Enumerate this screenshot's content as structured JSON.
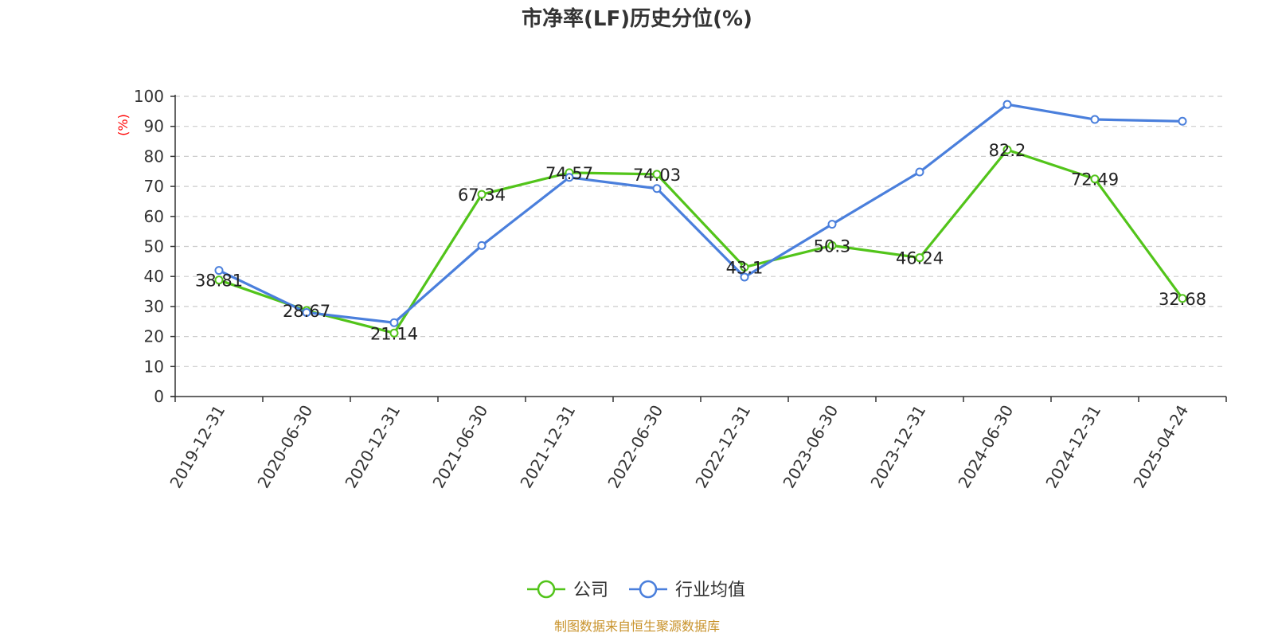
{
  "chart_data": {
    "type": "line",
    "title": "市净率(LF)历史分位(%)",
    "ylabel": "(%)",
    "ylim": [
      0,
      100
    ],
    "yticks": [
      0,
      10,
      20,
      30,
      40,
      50,
      60,
      70,
      80,
      90,
      100
    ],
    "grid": true,
    "legend_position": "bottom",
    "categories": [
      "2019-12-31",
      "2020-06-30",
      "2020-12-31",
      "2021-06-30",
      "2021-12-31",
      "2022-06-30",
      "2022-12-31",
      "2023-06-30",
      "2023-12-31",
      "2024-06-30",
      "2024-12-31",
      "2025-04-24"
    ],
    "series": [
      {
        "name": "公司",
        "color": "#52c41a",
        "show_labels": true,
        "values": [
          38.81,
          28.67,
          21.14,
          67.34,
          74.57,
          74.03,
          43.1,
          50.3,
          46.24,
          82.2,
          72.49,
          32.68
        ]
      },
      {
        "name": "行业均值",
        "color": "#4a7fdc",
        "show_labels": false,
        "values": [
          42.0,
          28.0,
          24.6,
          50.3,
          73.0,
          69.3,
          39.8,
          57.4,
          74.8,
          97.3,
          92.3,
          91.7
        ]
      }
    ],
    "source": "制图数据来自恒生聚源数据库"
  }
}
